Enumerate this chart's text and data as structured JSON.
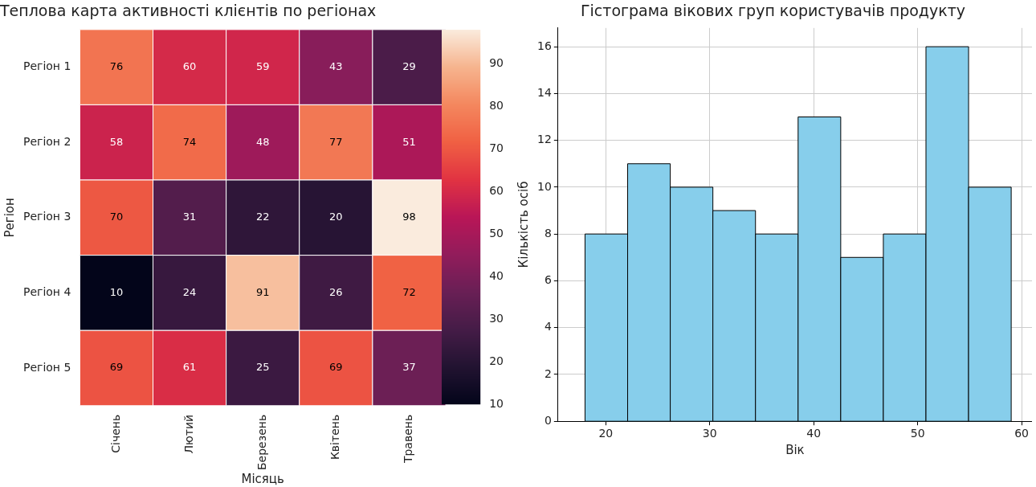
{
  "chart_data": [
    {
      "type": "heatmap",
      "title": "Теплова карта активності клієнтів по регіонах",
      "xlabel": "Місяць",
      "ylabel": "Регіон",
      "categories": [
        "Січень",
        "Лютий",
        "Березень",
        "Квітень",
        "Травень"
      ],
      "y_categories": [
        "Регіон 1",
        "Регіон 2",
        "Регіон 3",
        "Регіон 4",
        "Регіон 5"
      ],
      "cells": [
        [
          76,
          60,
          59,
          43,
          29
        ],
        [
          58,
          74,
          48,
          77,
          51
        ],
        [
          70,
          31,
          22,
          20,
          98
        ],
        [
          10,
          24,
          91,
          26,
          72
        ],
        [
          69,
          61,
          25,
          69,
          37
        ]
      ],
      "clim": [
        10,
        98
      ],
      "cticks": [
        10,
        20,
        30,
        40,
        50,
        60,
        70,
        80,
        90
      ],
      "data_labels": true
    },
    {
      "type": "histogram",
      "title": "Гістограма вікових груп користувачів продукту",
      "xlabel": "Вік",
      "ylabel": "Кількість осіб",
      "bins": [
        18,
        22.1,
        26.2,
        30.3,
        34.4,
        38.5,
        42.6,
        46.7,
        50.8,
        54.9,
        59
      ],
      "values": [
        8,
        11,
        10,
        9,
        8,
        13,
        7,
        8,
        16,
        10
      ],
      "color": "#87ceeb",
      "xlim": [
        15.4,
        61
      ],
      "ylim": [
        0,
        16.8
      ],
      "xticks": [
        20,
        30,
        40,
        50,
        60
      ],
      "yticks": [
        0,
        2,
        4,
        6,
        8,
        10,
        12,
        14,
        16
      ],
      "grid": true
    }
  ]
}
